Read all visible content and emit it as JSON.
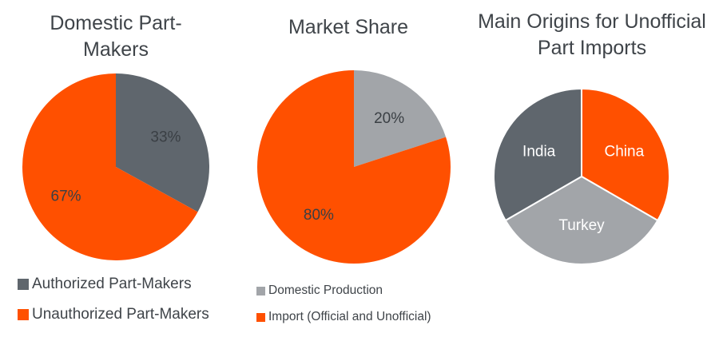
{
  "chart_data": [
    {
      "type": "pie",
      "title": "Domestic Part-Makers",
      "title_lines": [
        "Domestic Part-",
        "Makers"
      ],
      "slices": [
        {
          "label": "Authorized Part-Makers",
          "value": 33,
          "value_label": "33%",
          "color": "#5f666d",
          "text_color": "#3a3f44"
        },
        {
          "label": "Unauthorized Part-Makers",
          "value": 67,
          "value_label": "67%",
          "color": "#ff5000",
          "text_color": "#3a3f44"
        }
      ],
      "legend": "bottom-left"
    },
    {
      "type": "pie",
      "title": "Market Share",
      "title_lines": [
        "Market Share"
      ],
      "slices": [
        {
          "label": "Domestic Production",
          "value": 20,
          "value_label": "20%",
          "color": "#a2a5a9",
          "text_color": "#3a3f44"
        },
        {
          "label": "Import (Official and Unofficial)",
          "value": 80,
          "value_label": "80%",
          "color": "#ff5000",
          "text_color": "#3a3f44"
        }
      ],
      "legend": "bottom-left"
    },
    {
      "type": "pie",
      "title": "Main Origins for Unofficial Part Imports",
      "title_lines": [
        "Main Origins for Unofficial",
        "Part Imports"
      ],
      "slices": [
        {
          "label": "China",
          "value": 33.3,
          "value_label": "China",
          "color": "#ff5000",
          "text_color": "#ffffff"
        },
        {
          "label": "Turkey",
          "value": 33.3,
          "value_label": "Turkey",
          "color": "#a2a5a9",
          "text_color": "#ffffff"
        },
        {
          "label": "India",
          "value": 33.3,
          "value_label": "India",
          "color": "#5f666d",
          "text_color": "#ffffff"
        }
      ],
      "legend": "none"
    }
  ]
}
